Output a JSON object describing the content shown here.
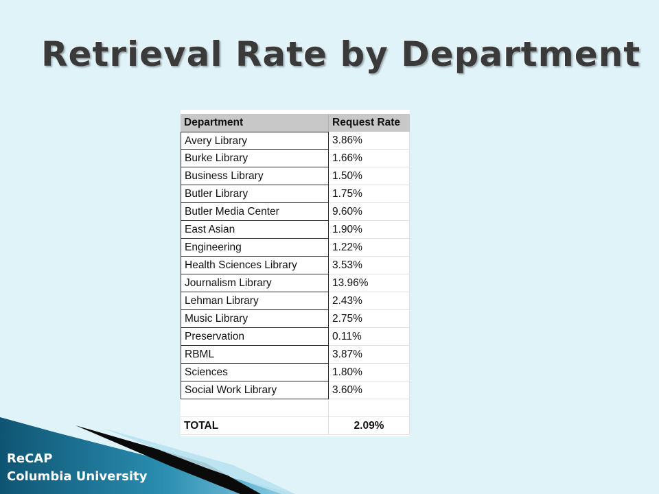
{
  "slide": {
    "title": "Retrieval Rate by Department",
    "footer_line1": "ReCAP",
    "footer_line2": "Columbia University"
  },
  "table": {
    "headers": [
      "Department",
      "Request Rate"
    ],
    "rows": [
      [
        "Avery Library",
        "3.86%"
      ],
      [
        "Burke Library",
        "1.66%"
      ],
      [
        "Business Library",
        "1.50%"
      ],
      [
        "Butler Library",
        "1.75%"
      ],
      [
        "Butler Media Center",
        "9.60%"
      ],
      [
        "East Asian",
        "1.90%"
      ],
      [
        "Engineering",
        "1.22%"
      ],
      [
        "Health Sciences Library",
        "3.53%"
      ],
      [
        "Journalism Library",
        "13.96%"
      ],
      [
        "Lehman Library",
        "2.43%"
      ],
      [
        "Music Library",
        "2.75%"
      ],
      [
        "Preservation",
        "0.11%"
      ],
      [
        "RBML",
        "3.87%"
      ],
      [
        "Sciences",
        "1.80%"
      ],
      [
        "Social Work Library",
        "3.60%"
      ]
    ],
    "total": [
      "TOTAL",
      "2.09%"
    ]
  },
  "colors": {
    "background": "#dff3f8",
    "footer_blue": "#1b6a8a",
    "header_gray": "#c8c8c8"
  }
}
